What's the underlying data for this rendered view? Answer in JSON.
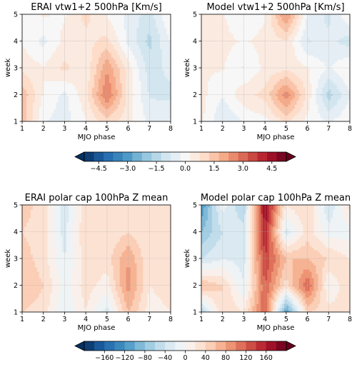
{
  "colors": {
    "negative_extreme": "#053061",
    "neutral": "#f7f7f7",
    "positive_extreme": "#67001f"
  },
  "chart_data": [
    {
      "type": "heatmap",
      "title": "ERAI vtw1+2 500hPa [Km/s]",
      "xlabel": "MJO phase",
      "ylabel": "week",
      "x": [
        1,
        2,
        3,
        4,
        5,
        6,
        7,
        8
      ],
      "y": [
        1,
        2,
        3,
        4,
        5
      ],
      "xlim": [
        1,
        8
      ],
      "ylim": [
        1,
        5
      ],
      "colorbar": "cb1",
      "values": [
        [
          1.5,
          -0.2,
          -0.5,
          0.2,
          1.0,
          0.4,
          -0.4,
          -0.2
        ],
        [
          1.6,
          0.2,
          -0.4,
          0.6,
          2.8,
          0.6,
          -0.8,
          -0.9
        ],
        [
          0.6,
          0.3,
          0.9,
          0.3,
          2.2,
          0.5,
          -1.0,
          -0.6
        ],
        [
          0.2,
          -0.4,
          0.4,
          0.6,
          0.9,
          -0.4,
          -1.4,
          -0.2
        ],
        [
          0.0,
          0.3,
          0.2,
          0.9,
          0.2,
          -0.4,
          -1.0,
          0.3
        ]
      ]
    },
    {
      "type": "heatmap",
      "title": "Model vtw1+2 500hPa [Km/s]",
      "xlabel": "MJO phase",
      "ylabel": "week",
      "x": [
        1,
        2,
        3,
        4,
        5,
        6,
        7,
        8
      ],
      "y": [
        1,
        2,
        3,
        4,
        5
      ],
      "xlim": [
        1,
        8
      ],
      "ylim": [
        1,
        5
      ],
      "colorbar": "cb1",
      "values": [
        [
          0.4,
          -0.8,
          -0.2,
          0.1,
          0.8,
          0.1,
          -0.3,
          0.2
        ],
        [
          0.4,
          -0.2,
          0.6,
          0.9,
          2.6,
          0.6,
          -1.5,
          -0.3
        ],
        [
          0.3,
          0.3,
          -0.3,
          0.4,
          0.6,
          0.3,
          -0.3,
          0.3
        ],
        [
          0.7,
          0.4,
          0.2,
          0.4,
          0.7,
          -0.8,
          -0.6,
          -1.0
        ],
        [
          0.5,
          0.3,
          -0.2,
          0.2,
          2.4,
          -0.3,
          -0.9,
          0.3
        ]
      ]
    },
    {
      "type": "heatmap",
      "title": "ERAI polar cap 100hPa Z mean",
      "xlabel": "MJO phase",
      "ylabel": "week",
      "x": [
        1,
        2,
        3,
        4,
        5,
        6,
        7,
        8
      ],
      "y": [
        1,
        2,
        3,
        4,
        5
      ],
      "xlim": [
        1,
        8
      ],
      "ylim": [
        1,
        5
      ],
      "colorbar": "cb2",
      "values": [
        [
          40,
          30,
          -20,
          20,
          -30,
          60,
          10,
          20
        ],
        [
          60,
          40,
          -10,
          30,
          10,
          90,
          20,
          30
        ],
        [
          50,
          30,
          -20,
          30,
          30,
          80,
          20,
          30
        ],
        [
          40,
          30,
          -30,
          40,
          20,
          40,
          20,
          30
        ],
        [
          50,
          30,
          -30,
          30,
          30,
          20,
          40,
          20
        ]
      ]
    },
    {
      "type": "heatmap",
      "title": "Model polar cap 100hPa Z mean",
      "xlabel": "MJO phase",
      "ylabel": "week",
      "x": [
        1,
        2,
        3,
        4,
        5,
        6,
        7,
        8
      ],
      "y": [
        1,
        2,
        3,
        4,
        5
      ],
      "xlim": [
        1,
        8
      ],
      "ylim": [
        1,
        5
      ],
      "colorbar": "cb2",
      "values": [
        [
          -60,
          40,
          20,
          120,
          -120,
          40,
          30,
          20
        ],
        [
          60,
          40,
          -20,
          120,
          30,
          120,
          0,
          40
        ],
        [
          -40,
          -20,
          -30,
          140,
          60,
          60,
          40,
          20
        ],
        [
          -80,
          -40,
          -30,
          160,
          -30,
          30,
          -10,
          -10
        ],
        [
          -120,
          -10,
          -60,
          180,
          20,
          40,
          -40,
          30
        ]
      ]
    }
  ],
  "colorbars": [
    {
      "id": "cb1",
      "vmin": -5.25,
      "vmax": 5.25,
      "levels": 21,
      "extend": "both",
      "ticks": [
        -4.5,
        -3.0,
        -1.5,
        0.0,
        1.5,
        3.0,
        4.5
      ],
      "tick_labels": [
        "−4.5",
        "−3.0",
        "−1.5",
        "0.0",
        "1.5",
        "3.0",
        "4.5"
      ]
    },
    {
      "id": "cb2",
      "vmin": -200,
      "vmax": 200,
      "levels": 20,
      "extend": "both",
      "ticks": [
        -160,
        -120,
        -80,
        -40,
        0,
        40,
        80,
        120,
        160
      ],
      "tick_labels": [
        "−160",
        "−120",
        "−80",
        "−40",
        "0",
        "40",
        "80",
        "120",
        "160"
      ]
    }
  ]
}
